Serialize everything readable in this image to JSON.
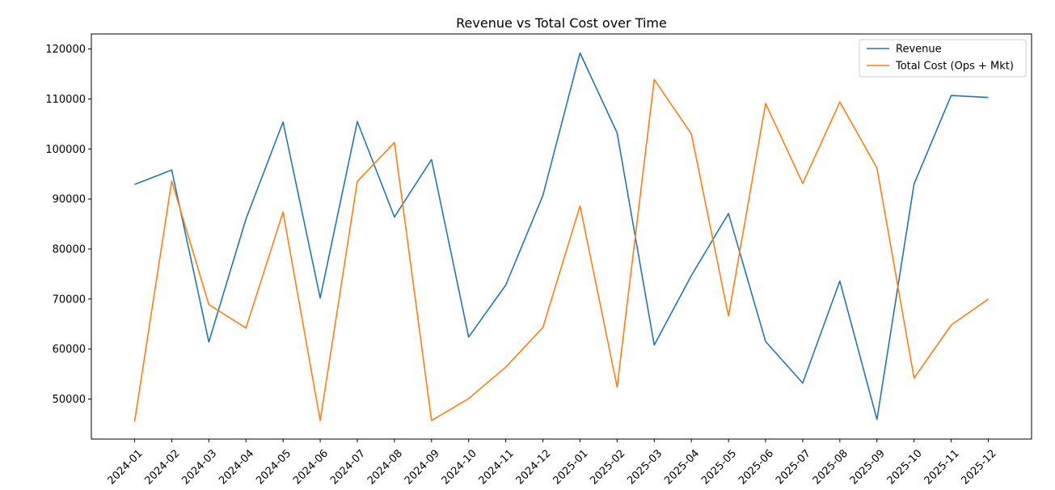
{
  "chart_data": {
    "type": "line",
    "title": "Revenue vs Total Cost over Time",
    "xlabel": "",
    "ylabel": "",
    "categories": [
      "2024-01",
      "2024-02",
      "2024-03",
      "2024-04",
      "2024-05",
      "2024-06",
      "2024-07",
      "2024-08",
      "2024-09",
      "2024-10",
      "2024-11",
      "2024-12",
      "2025-01",
      "2025-02",
      "2025-03",
      "2025-04",
      "2025-05",
      "2025-06",
      "2025-07",
      "2025-08",
      "2025-09",
      "2025-10",
      "2025-11",
      "2025-12"
    ],
    "ylim": [
      42000,
      123000
    ],
    "yticks": [
      50000,
      60000,
      70000,
      80000,
      90000,
      100000,
      110000,
      120000
    ],
    "grid": false,
    "legend_position": "top-right",
    "series": [
      {
        "name": "Revenue",
        "color": "#1f77b4",
        "values": [
          92900,
          95800,
          61400,
          86000,
          105400,
          70200,
          105500,
          86400,
          97900,
          62400,
          72800,
          90700,
          119200,
          103200,
          60800,
          74700,
          87100,
          61500,
          53200,
          73600,
          45900,
          93000,
          110700,
          110300
        ]
      },
      {
        "name": "Total Cost (Ops + Mkt)",
        "color": "#ff7f0e",
        "values": [
          45500,
          93600,
          68900,
          64200,
          87400,
          45700,
          93500,
          101300,
          45700,
          50100,
          56400,
          64300,
          88600,
          52400,
          113900,
          103000,
          66600,
          109100,
          93100,
          109400,
          96200,
          54200,
          64800,
          70000
        ]
      }
    ]
  }
}
